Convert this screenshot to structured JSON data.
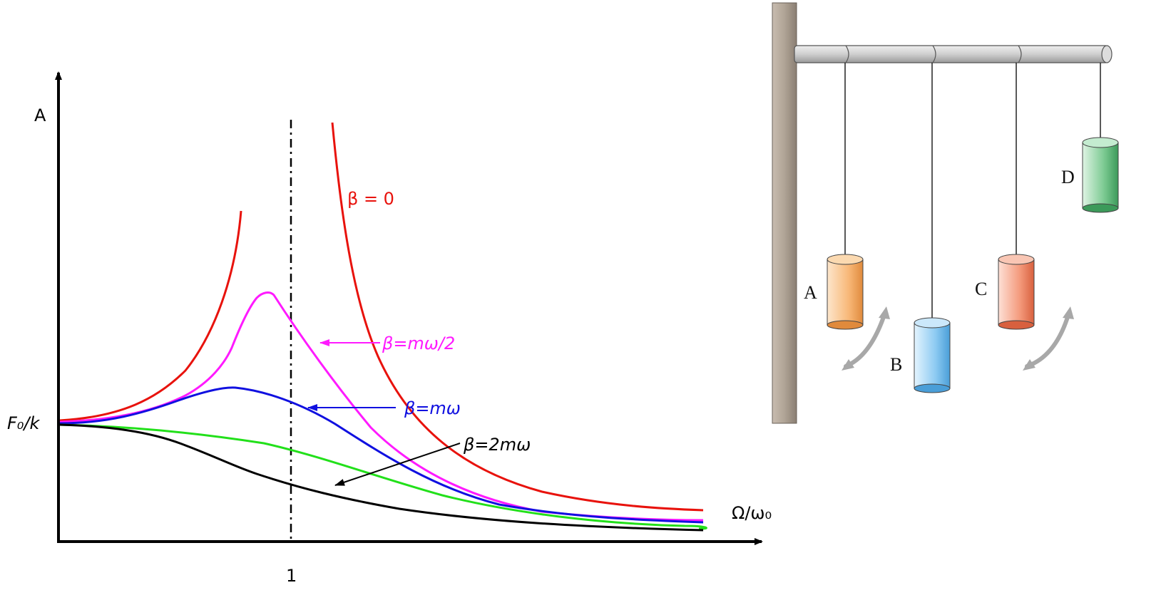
{
  "plot": {
    "y_axis_label": "A",
    "y_level_label": "F₀/k",
    "x_axis_label": "Ω/ω₀",
    "x_tick_label": "1",
    "curves": [
      {
        "label": "β = 0",
        "color": "#e8120c"
      },
      {
        "label": "β=mω/2",
        "color": "#ff1aff"
      },
      {
        "label": "β=mω",
        "color": "#1010e0"
      },
      {
        "label": "β=2mω",
        "color": "#000000"
      },
      {
        "label": "",
        "color": "#22e01a"
      }
    ]
  },
  "apparatus": {
    "pendulums": [
      {
        "label": "A",
        "color": "#f4a45a"
      },
      {
        "label": "B",
        "color": "#6cb8ea"
      },
      {
        "label": "C",
        "color": "#ee7e5e"
      },
      {
        "label": "D",
        "color": "#5cb878"
      }
    ]
  }
}
